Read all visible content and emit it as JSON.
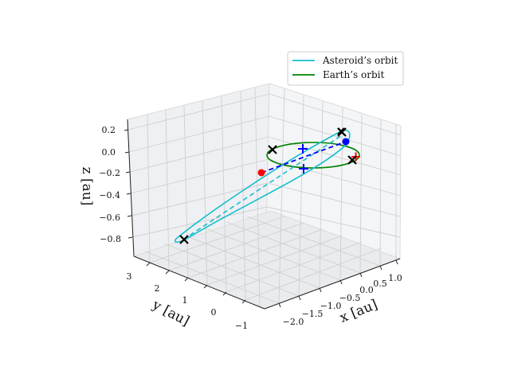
{
  "chart_data": {
    "type": "3d-line",
    "title": "",
    "axes": {
      "x": {
        "label": "x [au]",
        "ticks": [
          "−2.0",
          "−1.5",
          "−1.0",
          "−0.5",
          "0.0",
          "0.5",
          "1.0"
        ]
      },
      "y": {
        "label": "y [au]",
        "ticks": [
          "−1",
          "0",
          "1",
          "2",
          "3"
        ]
      },
      "z": {
        "label": "z [au]",
        "ticks": [
          "−0.8",
          "−0.6",
          "−0.4",
          "−0.2",
          "0.0",
          "0.2"
        ]
      }
    },
    "legend": {
      "placement": "top-right",
      "entries": [
        {
          "label": "Asteroid’s orbit",
          "color": "#17becf"
        },
        {
          "label": "Earth’s orbit",
          "color": "#008000"
        }
      ]
    },
    "series": [
      {
        "name": "Asteroid’s orbit",
        "style": "solid",
        "color": "#17becf"
      },
      {
        "name": "Earth’s orbit",
        "style": "solid",
        "color": "#008000"
      }
    ],
    "markers": {
      "black_x": 5,
      "red_points": 1,
      "blue_points": 1,
      "blue_plus": 2,
      "red_plus": 1
    },
    "colors": {
      "asteroid": "#17becf",
      "earth": "#008000",
      "link": "#0000ff",
      "red": "#ff0000",
      "blue": "#0000ff",
      "black": "#000000"
    },
    "grid": true
  }
}
